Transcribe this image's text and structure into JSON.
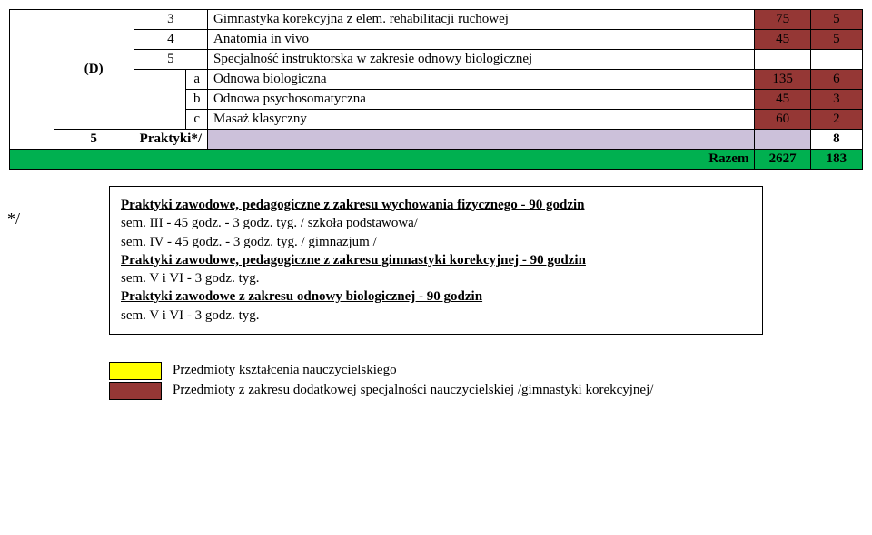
{
  "colors": {
    "yellow": "#ffff00",
    "brown": "#953735",
    "purple": "#ccc1da",
    "green": "#00b050",
    "white": "#ffffff"
  },
  "rows": [
    {
      "group_label": "(D)",
      "num": "3",
      "desc": "Gimnastyka korekcyjna z elem. rehabilitacji ruchowej",
      "v1": "75",
      "v2": "5",
      "bg": "brown"
    },
    {
      "num": "4",
      "desc": "Anatomia in vivo",
      "v1": "45",
      "v2": "5",
      "bg": "brown"
    },
    {
      "num": "5",
      "desc": "Specjalność instruktorska w zakresie odnowy biologicznej",
      "v1": "",
      "v2": "",
      "bg": "white"
    },
    {
      "num": "a",
      "desc": "Odnowa biologiczna",
      "v1": "135",
      "v2": "6",
      "bg": "brown"
    },
    {
      "num": "b",
      "desc": "Odnowa psychosomatyczna",
      "v1": "45",
      "v2": "3",
      "bg": "brown"
    },
    {
      "num": "c",
      "desc": "Masaż klasyczny",
      "v1": "60",
      "v2": "2",
      "bg": "brown"
    }
  ],
  "praktyki_row": {
    "c1": "5",
    "c3": "Praktyki*/",
    "v2": "8",
    "bg_c5": "purple",
    "bg_c6": "purple"
  },
  "razem_row": {
    "label": "Razem",
    "v1": "2627",
    "v2": "183",
    "bg": "green"
  },
  "star": "*/",
  "internship": {
    "line1": "Praktyki zawodowe, pedagogiczne z zakresu wychowania fizycznego - 90 godzin",
    "line2": "sem. III - 45 godz. - 3 godz. tyg. / szkoła podstawowa/",
    "line3": "sem. IV - 45 godz. - 3 godz. tyg. / gimnazjum /",
    "line4": "Praktyki zawodowe, pedagogiczne z zakresu gimnastyki korekcyjnej  - 90 godzin",
    "line5": "sem. V i VI - 3 godz. tyg.",
    "line6": "Praktyki zawodowe  z zakresu odnowy biologicznej - 90 godzin",
    "line7": "sem. V i VI - 3 godz. tyg."
  },
  "legend": {
    "item1": "Przedmioty kształcenia nauczycielskiego",
    "item2": "Przedmioty z zakresu dodatkowej specjalności nauczycielskiej /gimnastyki korekcyjnej/"
  }
}
